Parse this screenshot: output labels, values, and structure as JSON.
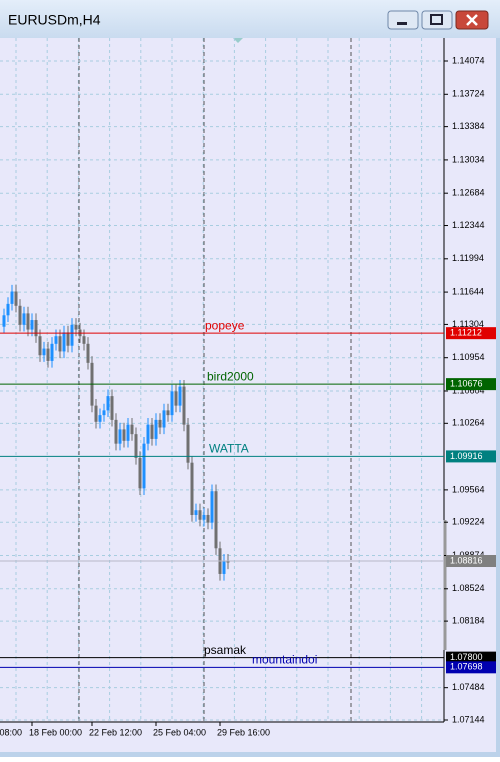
{
  "window": {
    "title": "EURUSDm,H4"
  },
  "chart_data": {
    "type": "candlestick",
    "categories": [
      null,
      null,
      null,
      null,
      null,
      null,
      null,
      "18 Feb 00:00",
      null,
      null,
      null,
      null,
      null,
      null,
      null,
      null,
      null,
      null,
      null,
      null,
      null,
      null,
      "22 Feb 12:00",
      null,
      null,
      null,
      null,
      null,
      null,
      null,
      null,
      null,
      null,
      null,
      null,
      null,
      null,
      null,
      "25 Feb 04:00",
      null,
      null,
      null,
      null,
      null,
      null,
      null,
      null,
      null,
      null,
      null,
      null,
      null,
      null,
      null,
      "29 Feb 16:00",
      null,
      null
    ],
    "first_label": "08:00",
    "open": [
      1.1128,
      1.114,
      1.1152,
      1.1165,
      1.115,
      1.113,
      1.1142,
      1.1125,
      1.1135,
      1.1118,
      1.1098,
      1.1105,
      1.1092,
      1.111,
      1.1118,
      1.1102,
      1.1122,
      1.1108,
      1.113,
      1.1125,
      1.1118,
      1.111,
      1.109,
      1.1045,
      1.1028,
      1.1035,
      1.104,
      1.1055,
      1.103,
      1.1005,
      1.102,
      1.1008,
      1.1025,
      1.1015,
      1.099,
      1.0958,
      1.1005,
      1.1025,
      1.101,
      1.103,
      1.1022,
      1.104,
      1.1035,
      1.106,
      1.1045,
      1.1065,
      1.1025,
      1.0985,
      1.093,
      1.0935,
      1.0925,
      1.093,
      1.0922,
      1.0955,
      1.0895,
      1.0868,
      1.0882
    ],
    "high": [
      1.1147,
      1.1159,
      1.1172,
      1.1172,
      1.1157,
      1.1149,
      1.1149,
      1.1142,
      1.1142,
      1.1125,
      1.1112,
      1.1112,
      1.1117,
      1.1125,
      1.1125,
      1.1129,
      1.1129,
      1.1137,
      1.1137,
      1.1132,
      1.1125,
      1.1117,
      1.1097,
      1.1052,
      1.1042,
      1.1047,
      1.1062,
      1.1062,
      1.1037,
      1.1027,
      1.1027,
      1.1032,
      1.1032,
      1.1022,
      1.0997,
      1.1012,
      1.1032,
      1.1032,
      1.1037,
      1.1037,
      1.1047,
      1.1047,
      1.1067,
      1.1067,
      1.1072,
      1.1072,
      1.1032,
      1.0992,
      1.0942,
      1.0942,
      1.0937,
      1.0937,
      1.0962,
      1.0962,
      1.0902,
      1.0889,
      1.0889
    ],
    "low": [
      1.1121,
      1.1133,
      1.1145,
      1.1143,
      1.1123,
      1.1123,
      1.1118,
      1.1118,
      1.1111,
      1.1091,
      1.1091,
      1.1085,
      1.1085,
      1.1103,
      1.1095,
      1.1095,
      1.1101,
      1.1101,
      1.1118,
      1.1111,
      1.1103,
      1.1083,
      1.1038,
      1.1021,
      1.1021,
      1.1028,
      1.1033,
      1.1023,
      1.0998,
      1.0998,
      1.1001,
      1.1001,
      1.1008,
      1.0983,
      1.0951,
      1.0951,
      1.0998,
      1.1003,
      1.1003,
      1.1015,
      1.1015,
      1.1028,
      1.1028,
      1.1038,
      1.1038,
      1.1018,
      1.0978,
      1.0923,
      1.0923,
      1.0918,
      1.0918,
      1.0915,
      1.0915,
      1.0888,
      1.0861,
      1.0861,
      1.0873
    ],
    "close": [
      1.114,
      1.1152,
      1.1165,
      1.115,
      1.113,
      1.1142,
      1.1125,
      1.1135,
      1.1118,
      1.1098,
      1.1105,
      1.1092,
      1.111,
      1.1118,
      1.1102,
      1.1122,
      1.1108,
      1.113,
      1.1125,
      1.1118,
      1.111,
      1.109,
      1.1045,
      1.1028,
      1.1035,
      1.104,
      1.1055,
      1.103,
      1.1005,
      1.102,
      1.1008,
      1.1025,
      1.1015,
      1.099,
      1.0958,
      1.1005,
      1.1025,
      1.101,
      1.103,
      1.1022,
      1.104,
      1.1035,
      1.106,
      1.1045,
      1.1065,
      1.1025,
      1.0985,
      1.093,
      1.0935,
      1.0925,
      1.093,
      1.0922,
      1.0955,
      1.0895,
      1.0868,
      1.0882,
      1.088
    ],
    "up_color": "#1e90ff",
    "down_color": "#707070",
    "ylim": [
      1.07123,
      1.14316
    ],
    "yticks": [
      1.14074,
      1.13724,
      1.13384,
      1.13034,
      1.12684,
      1.12344,
      1.11994,
      1.11644,
      1.11304,
      1.10954,
      1.10604,
      1.10264,
      1.09564,
      1.09224,
      1.08874,
      1.08524,
      1.08184,
      1.07484,
      1.07144
    ],
    "grid": true,
    "levels": [
      {
        "name": "popeye",
        "value": 1.11212,
        "color": "#e00000"
      },
      {
        "name": "bird2000",
        "value": 1.10676,
        "color": "#006400"
      },
      {
        "name": "WATTA",
        "value": 1.09916,
        "color": "#008080"
      },
      {
        "name": "psamak",
        "value": 1.078,
        "value_label": "1.07800",
        "color": "#000000"
      },
      {
        "name": "mountaindoi",
        "value": 1.07698,
        "color": "#0000b0"
      }
    ],
    "bid": 1.08816,
    "bid_color": "#808080"
  }
}
